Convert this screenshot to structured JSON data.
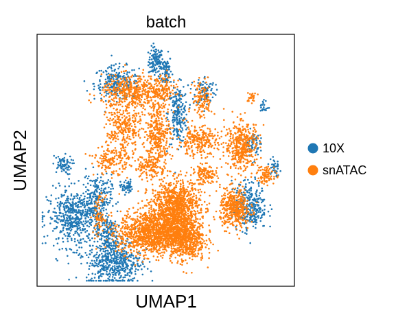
{
  "chart_data": {
    "type": "scatter",
    "title": "batch",
    "xlabel": "UMAP1",
    "ylabel": "UMAP2",
    "xticks": false,
    "yticks": false,
    "grid": false,
    "legend_position": "right",
    "series": [
      {
        "name": "10X",
        "color": "#1f77b4",
        "clusters": [
          {
            "cx": 0.46,
            "cy": 0.91,
            "sx": 0.015,
            "sy": 0.03,
            "n": 120
          },
          {
            "cx": 0.5,
            "cy": 0.87,
            "sx": 0.012,
            "sy": 0.035,
            "n": 80
          },
          {
            "cx": 0.3,
            "cy": 0.82,
            "sx": 0.045,
            "sy": 0.035,
            "n": 220
          },
          {
            "cx": 0.55,
            "cy": 0.69,
            "sx": 0.02,
            "sy": 0.06,
            "n": 220
          },
          {
            "cx": 0.66,
            "cy": 0.79,
            "sx": 0.02,
            "sy": 0.03,
            "n": 90
          },
          {
            "cx": 0.08,
            "cy": 0.48,
            "sx": 0.02,
            "sy": 0.02,
            "n": 70
          },
          {
            "cx": 0.34,
            "cy": 0.39,
            "sx": 0.012,
            "sy": 0.015,
            "n": 50
          },
          {
            "cx": 0.13,
            "cy": 0.26,
            "sx": 0.055,
            "sy": 0.06,
            "n": 500
          },
          {
            "cx": 0.22,
            "cy": 0.34,
            "sx": 0.03,
            "sy": 0.05,
            "n": 220
          },
          {
            "cx": 0.29,
            "cy": 0.08,
            "sx": 0.055,
            "sy": 0.05,
            "n": 520
          },
          {
            "cx": 0.26,
            "cy": 0.2,
            "sx": 0.02,
            "sy": 0.04,
            "n": 120
          },
          {
            "cx": 0.84,
            "cy": 0.31,
            "sx": 0.035,
            "sy": 0.05,
            "n": 320
          },
          {
            "cx": 0.85,
            "cy": 0.57,
            "sx": 0.015,
            "sy": 0.025,
            "n": 70
          },
          {
            "cx": 0.94,
            "cy": 0.47,
            "sx": 0.01,
            "sy": 0.025,
            "n": 40
          },
          {
            "cx": 0.9,
            "cy": 0.72,
            "sx": 0.008,
            "sy": 0.015,
            "n": 20
          }
        ]
      },
      {
        "name": "snATAC",
        "color": "#ff7f0e",
        "clusters": [
          {
            "cx": 0.36,
            "cy": 0.78,
            "sx": 0.06,
            "sy": 0.035,
            "n": 420
          },
          {
            "cx": 0.48,
            "cy": 0.79,
            "sx": 0.03,
            "sy": 0.03,
            "n": 150
          },
          {
            "cx": 0.65,
            "cy": 0.75,
            "sx": 0.02,
            "sy": 0.04,
            "n": 120
          },
          {
            "cx": 0.33,
            "cy": 0.63,
            "sx": 0.035,
            "sy": 0.05,
            "n": 280
          },
          {
            "cx": 0.47,
            "cy": 0.61,
            "sx": 0.025,
            "sy": 0.065,
            "n": 320
          },
          {
            "cx": 0.63,
            "cy": 0.58,
            "sx": 0.04,
            "sy": 0.03,
            "n": 240
          },
          {
            "cx": 0.81,
            "cy": 0.56,
            "sx": 0.035,
            "sy": 0.05,
            "n": 400
          },
          {
            "cx": 0.28,
            "cy": 0.5,
            "sx": 0.035,
            "sy": 0.03,
            "n": 160
          },
          {
            "cx": 0.43,
            "cy": 0.47,
            "sx": 0.03,
            "sy": 0.025,
            "n": 120
          },
          {
            "cx": 0.66,
            "cy": 0.44,
            "sx": 0.025,
            "sy": 0.02,
            "n": 120
          },
          {
            "cx": 0.91,
            "cy": 0.44,
            "sx": 0.02,
            "sy": 0.02,
            "n": 80
          },
          {
            "cx": 0.54,
            "cy": 0.3,
            "sx": 0.05,
            "sy": 0.06,
            "n": 1100
          },
          {
            "cx": 0.45,
            "cy": 0.2,
            "sx": 0.07,
            "sy": 0.045,
            "n": 1200
          },
          {
            "cx": 0.58,
            "cy": 0.17,
            "sx": 0.04,
            "sy": 0.045,
            "n": 500
          },
          {
            "cx": 0.78,
            "cy": 0.3,
            "sx": 0.03,
            "sy": 0.04,
            "n": 400
          },
          {
            "cx": 0.23,
            "cy": 0.27,
            "sx": 0.012,
            "sy": 0.04,
            "n": 70
          },
          {
            "cx": 0.85,
            "cy": 0.76,
            "sx": 0.01,
            "sy": 0.01,
            "n": 25
          }
        ]
      }
    ]
  }
}
